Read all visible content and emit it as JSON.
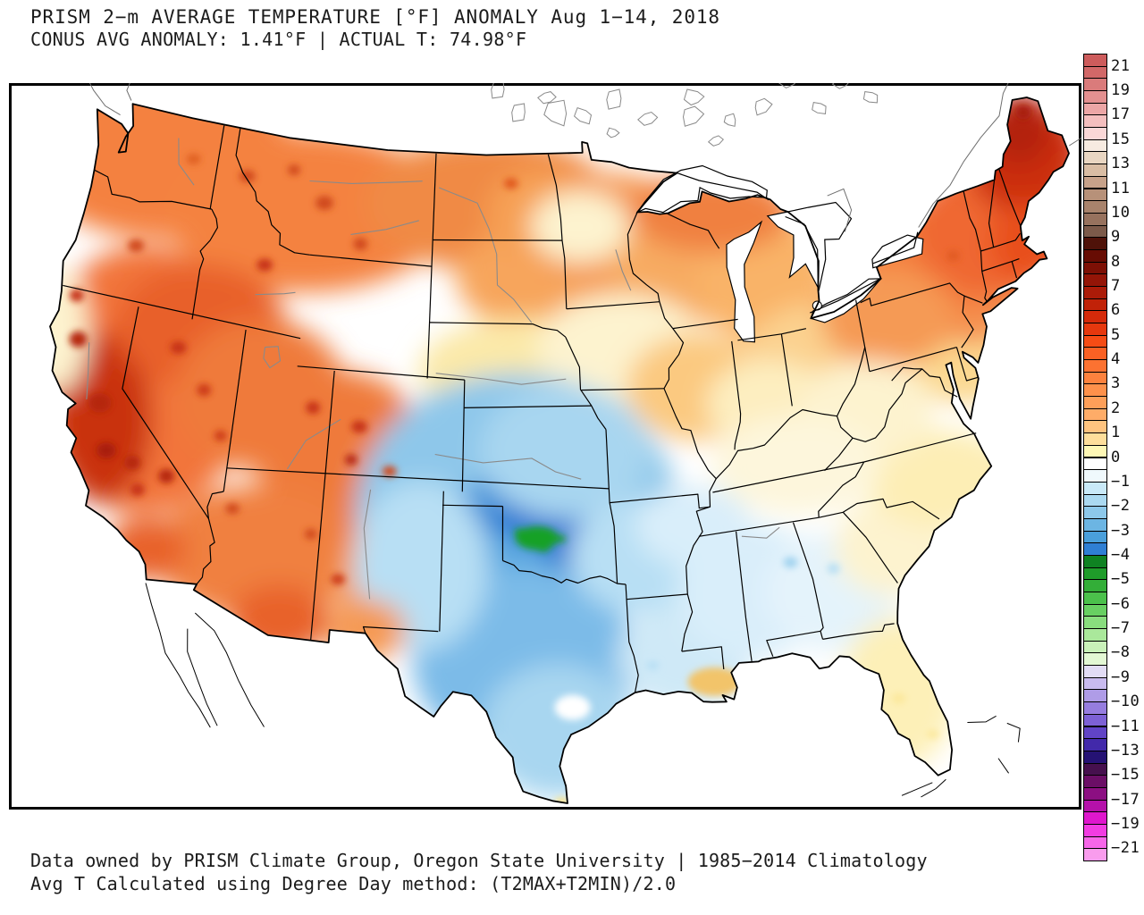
{
  "header": {
    "line1": "PRISM 2−m AVERAGE TEMPERATURE [°F] ANOMALY Aug 1−14, 2018",
    "line2": "CONUS AVG ANOMALY: 1.41°F | ACTUAL T: 74.98°F"
  },
  "footer": {
    "line1": "Data owned by PRISM Climate Group, Oregon State University | 1985−2014 Climatology",
    "line2": "Avg T Calculated using Degree Day method: (T2MAX+T2MIN)/2.0"
  },
  "colorbar": {
    "units": "°F",
    "labels": [
      [
        "21",
        1
      ],
      [
        "19",
        3
      ],
      [
        "17",
        5
      ],
      [
        "15",
        7
      ],
      [
        "13",
        9
      ],
      [
        "11",
        11
      ],
      [
        "10",
        13
      ],
      [
        "9",
        15
      ],
      [
        "8",
        17
      ],
      [
        "7",
        19
      ],
      [
        "6",
        21
      ],
      [
        "5",
        23
      ],
      [
        "4",
        25
      ],
      [
        "3",
        27
      ],
      [
        "2",
        29
      ],
      [
        "1",
        31
      ],
      [
        "0",
        33
      ],
      [
        "−1",
        35
      ],
      [
        "−2",
        37
      ],
      [
        "−3",
        39
      ],
      [
        "−4",
        41
      ],
      [
        "−5",
        43
      ],
      [
        "−6",
        45
      ],
      [
        "−7",
        47
      ],
      [
        "−8",
        49
      ],
      [
        "−9",
        51
      ],
      [
        "−10",
        53
      ],
      [
        "−11",
        55
      ],
      [
        "−13",
        57
      ],
      [
        "−15",
        59
      ],
      [
        "−17",
        61
      ],
      [
        "−19",
        63
      ],
      [
        "−21",
        65
      ]
    ],
    "cell_colors": [
      "#cd5c5c",
      "#d26868",
      "#da7b7b",
      "#e39090",
      "#eca6a6",
      "#f4bebe",
      "#fad7d7",
      "#f7ebe1",
      "#e9d6c2",
      "#d9bda4",
      "#c7a28a",
      "#b79179",
      "#a8836c",
      "#97725e",
      "#7c5a4a",
      "#4f1209",
      "#670c03",
      "#7d1005",
      "#941507",
      "#ab1b08",
      "#c12208",
      "#d52a0a",
      "#e6380e",
      "#f64c15",
      "#fa6124",
      "#fc7231",
      "#fd823e",
      "#fe914b",
      "#fe9f59",
      "#feac68",
      "#fec37f",
      "#fede9b",
      "#fef7b5",
      "#ffffff",
      "#f0f9fd",
      "#c9e9f8",
      "#abd9f1",
      "#8dc8ea",
      "#6cb5e3",
      "#4a9fdb",
      "#2f7fd4",
      "#0f8222",
      "#1f9c2a",
      "#33ae38",
      "#4bc14b",
      "#68d062",
      "#89dd7e",
      "#aae89b",
      "#c9f1b9",
      "#e3f8d4",
      "#e2dcf5",
      "#c9bbef",
      "#af9ce7",
      "#967ddf",
      "#7d61d5",
      "#6144c6",
      "#4229aa",
      "#251274",
      "#46104e",
      "#6b0e66",
      "#8c0f82",
      "#b511aa",
      "#df17cd",
      "#f23ce2",
      "#f766e9",
      "#f99ced"
    ]
  },
  "chart_data": {
    "type": "heatmap",
    "title": "PRISM 2−m AVERAGE TEMPERATURE [°F] ANOMALY Aug 1−14, 2018",
    "subtitle": "CONUS AVG ANOMALY: 1.41°F | ACTUAL T: 74.98°F",
    "units": "°F",
    "region": "CONUS",
    "conus_avg_anomaly_f": 1.41,
    "actual_temperature_f": 74.98,
    "period": "Aug 1−14, 2018",
    "climatology": "1985−2014",
    "scale_ticks": [
      21,
      19,
      17,
      15,
      13,
      11,
      10,
      9,
      8,
      7,
      6,
      5,
      4,
      3,
      2,
      1,
      0,
      -1,
      -2,
      -3,
      -4,
      -5,
      -6,
      -7,
      -8,
      -9,
      -10,
      -11,
      -13,
      -15,
      -17,
      -19,
      -21
    ],
    "legend_position": "right"
  }
}
